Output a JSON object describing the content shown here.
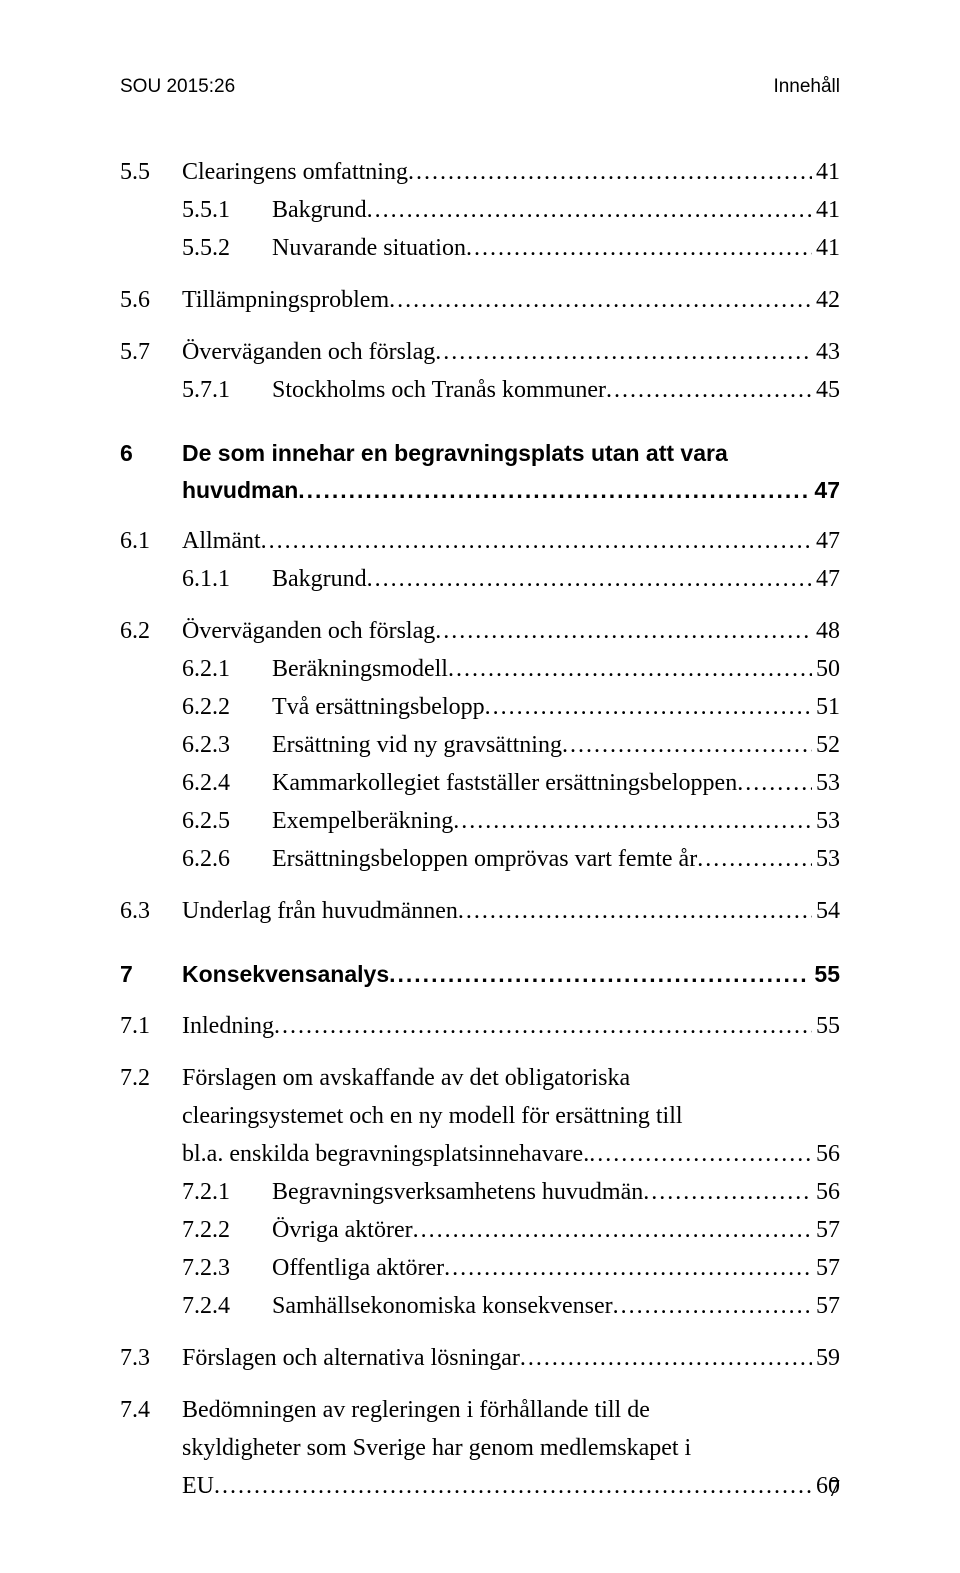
{
  "header": {
    "left": "SOU 2015:26",
    "right": "Innehåll"
  },
  "footer_page": "7",
  "entries": [
    {
      "type": "lvl1",
      "num": "5.5",
      "title": "Clearingens omfattning",
      "page": "41"
    },
    {
      "type": "lvl2",
      "num": "5.5.1",
      "title": "Bakgrund",
      "page": "41"
    },
    {
      "type": "lvl2",
      "num": "5.5.2",
      "title": "Nuvarande situation",
      "page": "41"
    },
    {
      "type": "gap-sm"
    },
    {
      "type": "lvl1",
      "num": "5.6",
      "title": "Tillämpningsproblem",
      "page": "42"
    },
    {
      "type": "gap-sm"
    },
    {
      "type": "lvl1",
      "num": "5.7",
      "title": "Överväganden och förslag",
      "page": "43"
    },
    {
      "type": "lvl2",
      "num": "5.7.1",
      "title": "Stockholms och Tranås kommuner",
      "page": "45"
    },
    {
      "type": "gap-md"
    },
    {
      "type": "lvl1-bold-wrap",
      "num": "6",
      "lines": [
        "De som innehar en begravningsplats utan att vara",
        "huvudman"
      ],
      "page": "47"
    },
    {
      "type": "gap-sm"
    },
    {
      "type": "lvl1",
      "num": "6.1",
      "title": "Allmänt",
      "page": "47"
    },
    {
      "type": "lvl2",
      "num": "6.1.1",
      "title": "Bakgrund",
      "page": "47"
    },
    {
      "type": "gap-sm"
    },
    {
      "type": "lvl1",
      "num": "6.2",
      "title": "Överväganden och förslag",
      "page": "48"
    },
    {
      "type": "lvl2",
      "num": "6.2.1",
      "title": "Beräkningsmodell",
      "page": "50"
    },
    {
      "type": "lvl2",
      "num": "6.2.2",
      "title": "Två ersättningsbelopp",
      "page": "51"
    },
    {
      "type": "lvl2",
      "num": "6.2.3",
      "title": "Ersättning vid ny gravsättning",
      "page": "52"
    },
    {
      "type": "lvl2",
      "num": "6.2.4",
      "title": "Kammarkollegiet fastställer ersättningsbeloppen",
      "page": "53"
    },
    {
      "type": "lvl2",
      "num": "6.2.5",
      "title": "Exempelberäkning",
      "page": "53"
    },
    {
      "type": "lvl2",
      "num": "6.2.6",
      "title": "Ersättningsbeloppen omprövas vart femte år",
      "page": "53"
    },
    {
      "type": "gap-sm"
    },
    {
      "type": "lvl1",
      "num": "6.3",
      "title": "Underlag från huvudmännen",
      "page": "54"
    },
    {
      "type": "gap-md"
    },
    {
      "type": "lvl1-bold",
      "num": "7",
      "title": "Konsekvensanalys",
      "page": "55"
    },
    {
      "type": "gap-sm"
    },
    {
      "type": "lvl1",
      "num": "7.1",
      "title": "Inledning",
      "page": "55"
    },
    {
      "type": "gap-sm"
    },
    {
      "type": "lvl1-wrap",
      "num": "7.2",
      "lines": [
        "Förslagen om avskaffande av det obligatoriska",
        "clearingsystemet och en ny modell för ersättning till",
        "bl.a. enskilda begravningsplatsinnehavare."
      ],
      "page": "56"
    },
    {
      "type": "lvl2",
      "num": "7.2.1",
      "title": "Begravningsverksamhetens huvudmän",
      "page": "56"
    },
    {
      "type": "lvl2",
      "num": "7.2.2",
      "title": "Övriga aktörer",
      "page": "57"
    },
    {
      "type": "lvl2",
      "num": "7.2.3",
      "title": "Offentliga aktörer",
      "page": "57"
    },
    {
      "type": "lvl2",
      "num": "7.2.4",
      "title": "Samhällsekonomiska konsekvenser",
      "page": "57"
    },
    {
      "type": "gap-sm"
    },
    {
      "type": "lvl1",
      "num": "7.3",
      "title": "Förslagen och alternativa lösningar",
      "page": "59"
    },
    {
      "type": "gap-sm"
    },
    {
      "type": "lvl1-wrap",
      "num": "7.4",
      "lines": [
        "Bedömningen av regleringen i förhållande till de",
        "skyldigheter som Sverige har genom medlemskapet i",
        "EU"
      ],
      "page": "60"
    }
  ]
}
